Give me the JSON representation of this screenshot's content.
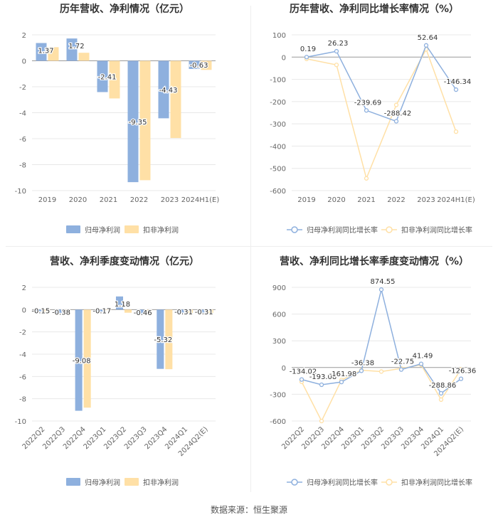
{
  "source_label": "数据来源：恒生聚源",
  "chart_data": [
    {
      "type": "bar",
      "title": "历年营收、净利情况（亿元）",
      "categories": [
        "2019",
        "2020",
        "2021",
        "2022",
        "2023",
        "2024H1(E)"
      ],
      "ylim": [
        -10,
        2
      ],
      "yticks": [
        2,
        0,
        -2,
        -4,
        -6,
        -8,
        -10
      ],
      "grid": true,
      "legend_position": "bottom",
      "series": [
        {
          "name": "归母净利润",
          "color": "#8eb0de",
          "values": [
            1.37,
            1.72,
            -2.41,
            -9.35,
            -4.43,
            -0.63
          ],
          "labels": [
            "1.37",
            "1.72",
            "-2.41",
            "-9.35",
            "-4.43",
            "-0.63"
          ]
        },
        {
          "name": "扣非净利润",
          "color": "#ffe0a6",
          "values": [
            1.05,
            0.62,
            -2.9,
            -9.2,
            -5.95,
            -0.7
          ]
        }
      ]
    },
    {
      "type": "line",
      "title": "历年营收、净利同比增长率情况（%）",
      "categories": [
        "2019",
        "2020",
        "2021",
        "2022",
        "2023",
        "2024H1(E)"
      ],
      "ylim": [
        -600,
        100
      ],
      "yticks": [
        100,
        0,
        -100,
        -200,
        -300,
        -400,
        -500,
        -600
      ],
      "grid": true,
      "legend_position": "bottom",
      "series": [
        {
          "name": "归母净利润同比增长率",
          "color": "#8eb0de",
          "values": [
            0.19,
            26.23,
            -239.69,
            -288.42,
            52.64,
            -146.34
          ],
          "labels": [
            "0.19",
            "26.23",
            "-239.69",
            "-288.42",
            "52.64",
            "-146.34"
          ]
        },
        {
          "name": "扣非净利润同比增长率",
          "color": "#ffe0a6",
          "values": [
            -8,
            -35,
            -545,
            -215,
            35,
            -335
          ]
        }
      ]
    },
    {
      "type": "bar",
      "title": "营收、净利季度变动情况（亿元）",
      "categories": [
        "2022Q2",
        "2022Q3",
        "2022Q4",
        "2023Q1",
        "2023Q2",
        "2023Q3",
        "2023Q4",
        "2024Q1",
        "2024Q2(E)"
      ],
      "ylim": [
        -10,
        2
      ],
      "yticks": [
        2,
        0,
        -2,
        -4,
        -6,
        -8,
        -10
      ],
      "grid": true,
      "legend_position": "bottom",
      "series": [
        {
          "name": "归母净利润",
          "color": "#8eb0de",
          "values": [
            -0.15,
            -0.38,
            -9.08,
            -0.17,
            1.18,
            -0.46,
            -5.32,
            -0.31,
            -0.31
          ],
          "labels": [
            "-0.15",
            "-0.38",
            "-9.08",
            "-0.17",
            "1.18",
            "-0.46",
            "-5.32",
            "-0.31",
            "-0.31"
          ]
        },
        {
          "name": "扣非净利润",
          "color": "#ffe0a6",
          "values": [
            -0.2,
            -0.4,
            -8.8,
            -0.05,
            -0.28,
            -0.5,
            -5.35,
            -0.3,
            -0.3
          ]
        }
      ]
    },
    {
      "type": "line",
      "title": "营收、净利同比增长率季度变动情况（%）",
      "categories": [
        "2022Q2",
        "2022Q3",
        "2022Q4",
        "2023Q1",
        "2023Q2",
        "2023Q3",
        "2023Q4",
        "2024Q1",
        "2024Q2(E)"
      ],
      "ylim": [
        -600,
        900
      ],
      "yticks": [
        900,
        600,
        300,
        0,
        -300,
        -600
      ],
      "grid": true,
      "legend_position": "bottom",
      "series": [
        {
          "name": "归母净利润同比增长率",
          "color": "#8eb0de",
          "values": [
            -134.02,
            -193.08,
            -161.98,
            -36.38,
            874.55,
            -22.75,
            41.49,
            -288.86,
            -126.36
          ],
          "labels": [
            "-134.02",
            "-193.08",
            "-161.98",
            "-36.38",
            "874.55",
            "-22.75",
            "41.49",
            "-288.86",
            "-126.36"
          ]
        },
        {
          "name": "扣非净利润同比增长率",
          "color": "#ffe0a6",
          "values": [
            -160,
            -600,
            -140,
            -30,
            -45,
            -10,
            30,
            -360,
            -20
          ]
        }
      ]
    }
  ]
}
